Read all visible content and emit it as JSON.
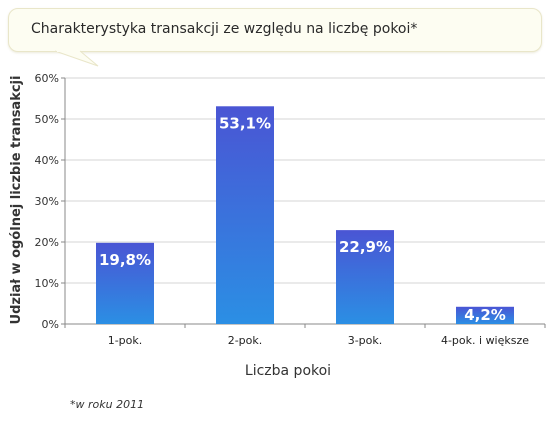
{
  "chart_data": {
    "type": "bar",
    "title": "Charakterystyka transakcji ze względu na liczbę pokoi*",
    "categories": [
      "1-pok.",
      "2-pok.",
      "3-pok.",
      "4-pok. i większe"
    ],
    "values": [
      19.8,
      53.1,
      22.9,
      4.2
    ],
    "value_labels": [
      "19,8%",
      "53,1%",
      "22,9%",
      "4,2%"
    ],
    "xlabel": "Liczba pokoi",
    "ylabel": "Udział w ogólnej liczbie transakcji",
    "ylim": [
      0,
      60
    ],
    "yticks": [
      0,
      10,
      20,
      30,
      40,
      50,
      60
    ],
    "ytick_labels": [
      "0%",
      "10%",
      "20%",
      "30%",
      "40%",
      "50%",
      "60%"
    ],
    "grid": "horizontal",
    "bar_color_top": "#4a55d4",
    "bar_color_bottom": "#2b8fe4"
  },
  "footnote": "*w roku 2011"
}
